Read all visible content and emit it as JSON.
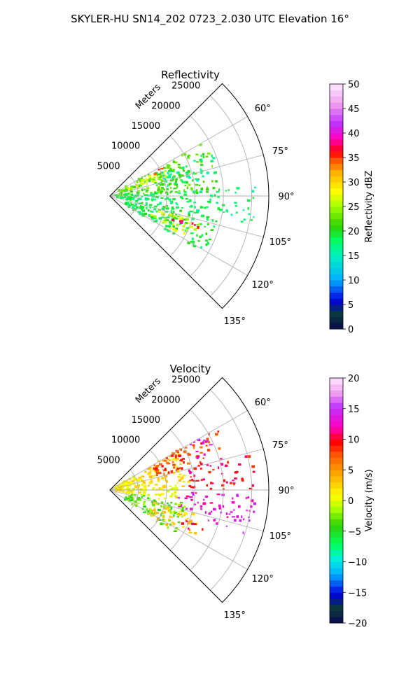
{
  "title": "SKYLER-HU  SN14_202  0723_2.030 UTC Elevation 16°",
  "chart_data": [
    {
      "type": "heatmap",
      "projection": "polar-sector",
      "title": "Reflectivity",
      "radial_label": "Meters",
      "radial_ticks": [
        5000,
        10000,
        15000,
        20000,
        25000
      ],
      "radial_tick_labels": [
        "5000",
        "10000",
        "15000",
        "20000",
        "25000"
      ],
      "r_max": 28000,
      "angle_range_deg": [
        45,
        135
      ],
      "angle_ticks": [
        60,
        75,
        90,
        105,
        120,
        135
      ],
      "angle_tick_labels": [
        "60°",
        "75°",
        "90°",
        "105°",
        "120°",
        "135°"
      ],
      "grid": true,
      "colorbar": {
        "label": "Reflectivity dBZ",
        "min": 0,
        "max": 50,
        "ticks": [
          0,
          5,
          10,
          15,
          20,
          25,
          30,
          35,
          40,
          45,
          50
        ],
        "tick_labels": [
          "0",
          "5",
          "10",
          "15",
          "20",
          "25",
          "30",
          "35",
          "40",
          "45",
          "50"
        ],
        "colormap": [
          [
            0,
            "#0a0a50"
          ],
          [
            0.06,
            "#0a3a3a"
          ],
          [
            0.12,
            "#0000e0"
          ],
          [
            0.2,
            "#00b0ff"
          ],
          [
            0.3,
            "#00f0c0"
          ],
          [
            0.36,
            "#00ff60"
          ],
          [
            0.42,
            "#30d000"
          ],
          [
            0.5,
            "#a0ff00"
          ],
          [
            0.56,
            "#ffff00"
          ],
          [
            0.64,
            "#ffb000"
          ],
          [
            0.7,
            "#ff4000"
          ],
          [
            0.72,
            "#ff0000"
          ],
          [
            0.78,
            "#ff00c0"
          ],
          [
            0.84,
            "#c030ff"
          ],
          [
            0.92,
            "#f0a0f0"
          ],
          [
            1,
            "#ffe8ff"
          ]
        ]
      },
      "echo_regions": [
        {
          "az": [
            60,
            88
          ],
          "r": [
            1500,
            19000
          ],
          "value": 22
        },
        {
          "az": [
            64,
            72
          ],
          "r": [
            3000,
            11000
          ],
          "value": 27
        },
        {
          "az": [
            62,
            66
          ],
          "r": [
            8500,
            10500
          ],
          "value": 36
        },
        {
          "az": [
            66,
            80
          ],
          "r": [
            10000,
            20000
          ],
          "value": 17
        },
        {
          "az": [
            86,
            102
          ],
          "r": [
            1000,
            26000
          ],
          "value": 18
        },
        {
          "az": [
            100,
            122
          ],
          "r": [
            3000,
            20000
          ],
          "value": 19
        },
        {
          "az": [
            106,
            118
          ],
          "r": [
            8000,
            17000
          ],
          "value": 26
        },
        {
          "az": [
            108,
            114
          ],
          "r": [
            11500,
            13500
          ],
          "value": 37
        },
        {
          "az": [
            104,
            110
          ],
          "r": [
            15000,
            17500
          ],
          "value": 35
        }
      ]
    },
    {
      "type": "heatmap",
      "projection": "polar-sector",
      "title": "Velocity",
      "radial_label": "Meters",
      "radial_ticks": [
        5000,
        10000,
        15000,
        20000,
        25000
      ],
      "radial_tick_labels": [
        "5000",
        "10000",
        "15000",
        "20000",
        "25000"
      ],
      "r_max": 28000,
      "angle_range_deg": [
        45,
        135
      ],
      "angle_ticks": [
        60,
        75,
        90,
        105,
        120,
        135
      ],
      "angle_tick_labels": [
        "60°",
        "75°",
        "90°",
        "105°",
        "120°",
        "135°"
      ],
      "grid": true,
      "colorbar": {
        "label": "Velocity (m/s)",
        "min": -20,
        "max": 20,
        "ticks": [
          -20,
          -15,
          -10,
          -5,
          0,
          5,
          10,
          15,
          20
        ],
        "tick_labels": [
          "−20",
          "−15",
          "−10",
          "−5",
          "0",
          "5",
          "10",
          "15",
          "20"
        ],
        "colormap": [
          [
            0,
            "#0a0a50"
          ],
          [
            0.06,
            "#0a3a3a"
          ],
          [
            0.12,
            "#0000e0"
          ],
          [
            0.2,
            "#00b0ff"
          ],
          [
            0.26,
            "#00f0e0"
          ],
          [
            0.32,
            "#00ff60"
          ],
          [
            0.4,
            "#30d000"
          ],
          [
            0.46,
            "#a0ff00"
          ],
          [
            0.52,
            "#ffff00"
          ],
          [
            0.6,
            "#ffb000"
          ],
          [
            0.68,
            "#ff6000"
          ],
          [
            0.74,
            "#ff0000"
          ],
          [
            0.8,
            "#ff00c0"
          ],
          [
            0.88,
            "#c030ff"
          ],
          [
            0.94,
            "#f0a0f0"
          ],
          [
            1,
            "#ffe8ff"
          ]
        ]
      },
      "echo_regions": [
        {
          "az": [
            60,
            90
          ],
          "r": [
            1000,
            14000
          ],
          "value": 2
        },
        {
          "az": [
            60,
            74
          ],
          "r": [
            8000,
            22000
          ],
          "value": 8
        },
        {
          "az": [
            74,
            90
          ],
          "r": [
            14000,
            26000
          ],
          "value": 10
        },
        {
          "az": [
            60,
            70
          ],
          "r": [
            16000,
            20000
          ],
          "value": 14
        },
        {
          "az": [
            88,
            100
          ],
          "r": [
            500,
            12000
          ],
          "value": 1
        },
        {
          "az": [
            92,
            104
          ],
          "r": [
            12000,
            26000
          ],
          "value": 13
        },
        {
          "az": [
            100,
            108
          ],
          "r": [
            18000,
            25000
          ],
          "value": 14
        },
        {
          "az": [
            100,
            124
          ],
          "r": [
            3000,
            14000
          ],
          "value": -3
        },
        {
          "az": [
            106,
            122
          ],
          "r": [
            8000,
            17000
          ],
          "value": 3
        },
        {
          "az": [
            112,
            118
          ],
          "r": [
            14000,
            18000
          ],
          "value": 10
        }
      ]
    }
  ]
}
